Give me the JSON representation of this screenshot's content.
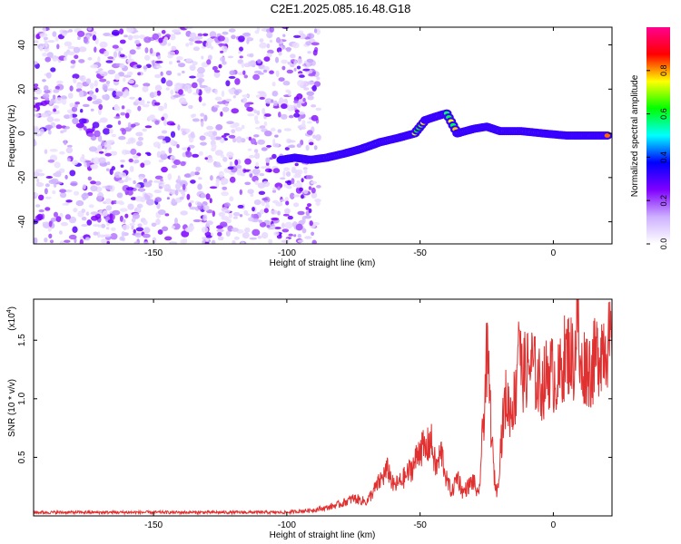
{
  "title": "C2E1.2025.085.16.48.G18",
  "chart_data": [
    {
      "type": "heatmap",
      "xlabel": "Height of straight line (km)",
      "ylabel": "Frequency (Hz)",
      "xlim": [
        -195,
        22
      ],
      "ylim": [
        -50,
        48
      ],
      "xticks": [
        -150,
        -100,
        -50,
        0
      ],
      "yticks": [
        40,
        20,
        0,
        -20,
        -40
      ],
      "colorbar": {
        "label": "Normalized spectral amplitude",
        "range": [
          0,
          1
        ],
        "ticks": [
          "0.0",
          "0.2",
          "0.4",
          "0.6",
          "0.8"
        ],
        "colors": [
          "#ffffff",
          "#cdb0ff",
          "#8000ff",
          "#0000ff",
          "#00ffff",
          "#00ff00",
          "#ffff00",
          "#ff0000",
          "#ff0090"
        ]
      },
      "noise_region": {
        "x": [
          -195,
          -88
        ],
        "y": [
          -50,
          48
        ],
        "amplitude": [
          0.05,
          0.3
        ]
      },
      "ridge": [
        {
          "x": -102,
          "y": -12
        },
        {
          "x": -97,
          "y": -11
        },
        {
          "x": -91,
          "y": -12
        },
        {
          "x": -85,
          "y": -11
        },
        {
          "x": -78,
          "y": -9
        },
        {
          "x": -72,
          "y": -7
        },
        {
          "x": -65,
          "y": -4
        },
        {
          "x": -58,
          "y": -2
        },
        {
          "x": -52,
          "y": 0
        },
        {
          "x": -48,
          "y": 6
        },
        {
          "x": -43,
          "y": 8
        },
        {
          "x": -40,
          "y": 9
        },
        {
          "x": -36,
          "y": 0
        },
        {
          "x": -30,
          "y": 2
        },
        {
          "x": -25,
          "y": 3
        },
        {
          "x": -20,
          "y": 1
        },
        {
          "x": -12,
          "y": 1
        },
        {
          "x": -4,
          "y": 0
        },
        {
          "x": 5,
          "y": -1
        },
        {
          "x": 14,
          "y": -1
        },
        {
          "x": 21,
          "y": -1
        }
      ]
    },
    {
      "type": "line",
      "xlabel": "Height of straight line (km)",
      "ylabel": "SNR (10 * v/v)",
      "multiplier_label": "(x10",
      "multiplier_exp": "4",
      "multiplier_close": ")",
      "xlim": [
        -195,
        22
      ],
      "ylim": [
        0,
        1.85
      ],
      "xticks": [
        -150,
        -100,
        -50,
        0
      ],
      "yticks": [
        "0.5",
        "1.0",
        "1.5"
      ],
      "color": "#e03030",
      "series": [
        {
          "x": [
            -195,
            -180,
            -160,
            -140,
            -120,
            -100,
            -95,
            -90,
            -85,
            -80,
            -75,
            -70,
            -65,
            -62,
            -60,
            -57,
            -55,
            -52,
            -50,
            -48,
            -46,
            -44,
            -42,
            -40,
            -38,
            -36,
            -34,
            -32,
            -30,
            -28,
            -26,
            -25,
            -24,
            -23,
            -22,
            -21,
            -20,
            -18,
            -16,
            -14,
            -13,
            -12,
            -10,
            -8,
            -6,
            -4,
            -2,
            0,
            2,
            4,
            6,
            8,
            9,
            10,
            12,
            14,
            16,
            18,
            20,
            22
          ],
          "y": [
            0.03,
            0.03,
            0.03,
            0.03,
            0.03,
            0.03,
            0.04,
            0.05,
            0.07,
            0.1,
            0.15,
            0.12,
            0.3,
            0.4,
            0.25,
            0.3,
            0.35,
            0.45,
            0.6,
            0.55,
            0.65,
            0.4,
            0.55,
            0.3,
            0.2,
            0.35,
            0.2,
            0.25,
            0.3,
            0.15,
            0.9,
            1.35,
            1.1,
            0.6,
            0.3,
            0.2,
            0.55,
            1.0,
            0.9,
            1.05,
            1.75,
            1.2,
            1.25,
            1.3,
            1.15,
            1.1,
            1.25,
            1.2,
            1.15,
            1.35,
            1.4,
            1.3,
            1.85,
            1.2,
            1.3,
            1.25,
            1.35,
            1.45,
            1.5,
            1.4
          ]
        }
      ]
    }
  ]
}
